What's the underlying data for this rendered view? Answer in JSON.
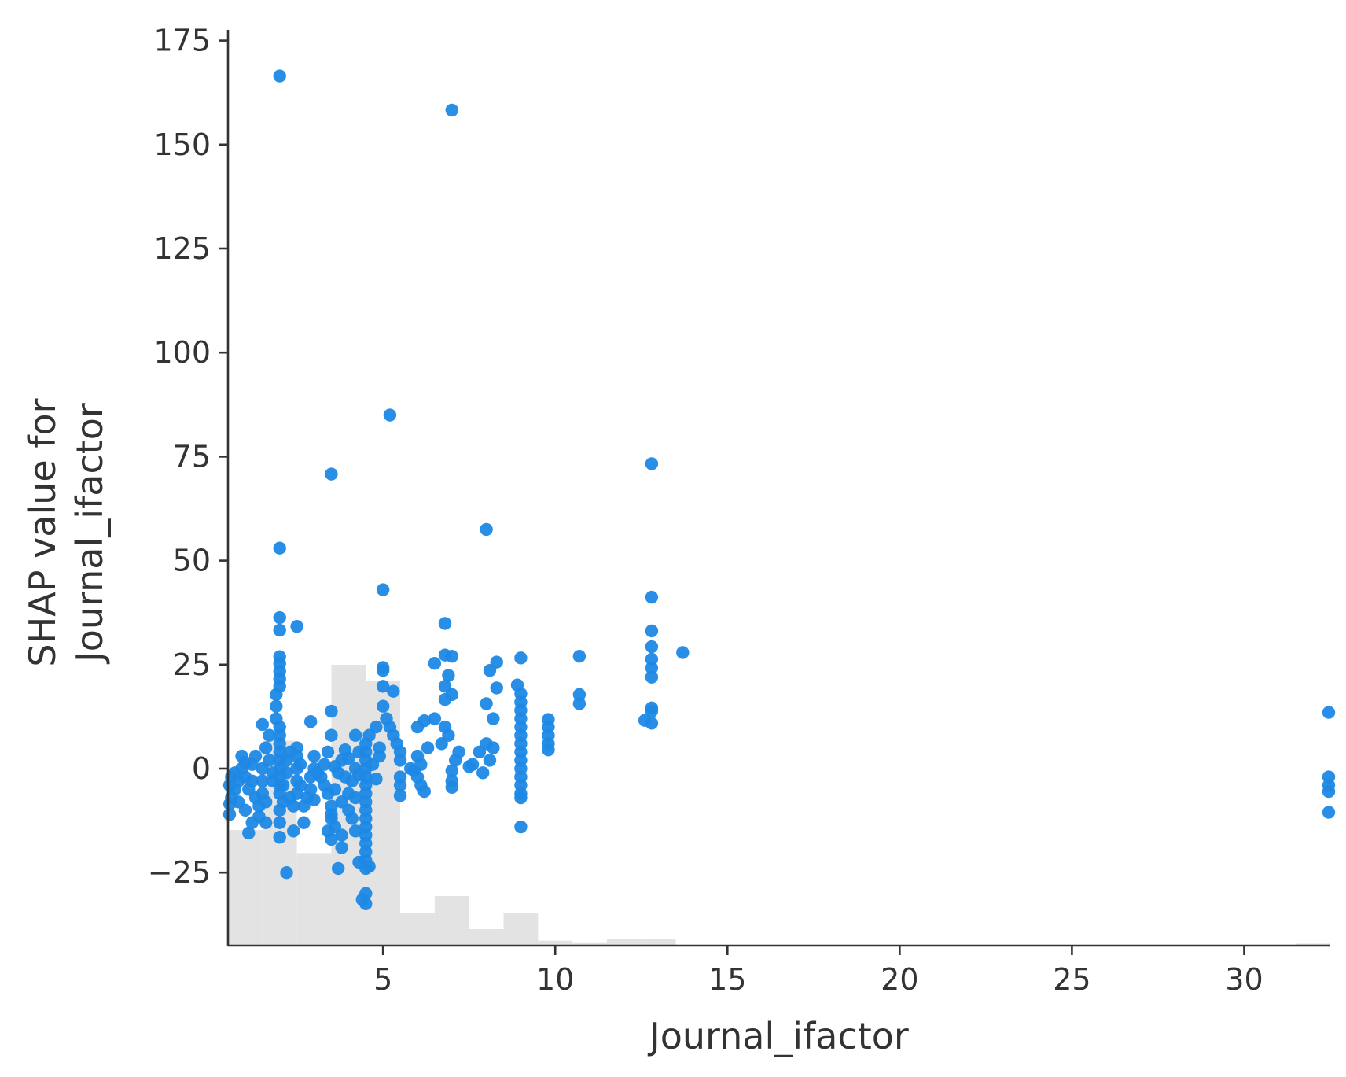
{
  "chart_data": {
    "type": "scatter",
    "title": "",
    "xlabel": "Journal_ifactor",
    "ylabel_lines": [
      "SHAP value for",
      "Journal_ifactor"
    ],
    "xlim": [
      0.5,
      32.5
    ],
    "ylim": [
      -43,
      177
    ],
    "x_ticks": [
      5,
      10,
      15,
      20,
      25,
      30
    ],
    "x_tick_labels": [
      "5",
      "10",
      "15",
      "20",
      "25",
      "30"
    ],
    "y_ticks": [
      -25,
      0,
      25,
      50,
      75,
      100,
      125,
      150,
      175
    ],
    "y_tick_labels": [
      "−25",
      "0",
      "25",
      "50",
      "75",
      "100",
      "125",
      "150",
      "175"
    ],
    "grid": false,
    "point_color": "#1E88E5",
    "histogram_color": "#e3e3e3",
    "histogram": {
      "bin_edges": [
        0.5,
        1.5,
        2.5,
        3.5,
        4.5,
        5.5,
        6.5,
        7.5,
        8.5,
        9.5,
        10.5,
        11.5,
        12.5,
        13.5,
        31.5,
        32.5
      ],
      "heights": [
        0.35,
        0.62,
        0.28,
        0.85,
        0.8,
        0.1,
        0.15,
        0.05,
        0.1,
        0.015,
        0.008,
        0.02,
        0.02,
        0.0,
        0.006
      ]
    },
    "series": [
      {
        "points": [
          [
            2.0,
            166.5
          ],
          [
            7.0,
            158.3
          ],
          [
            5.2,
            85.0
          ],
          [
            3.5,
            70.8
          ],
          [
            12.8,
            73.3
          ],
          [
            8.0,
            57.5
          ],
          [
            2.0,
            53.0
          ],
          [
            5.0,
            43.0
          ],
          [
            12.8,
            41.2
          ],
          [
            2.0,
            36.3
          ],
          [
            2.5,
            34.2
          ],
          [
            6.8,
            34.9
          ],
          [
            2.0,
            33.3
          ],
          [
            12.8,
            33.1
          ],
          [
            12.8,
            29.3
          ],
          [
            13.7,
            27.9
          ],
          [
            10.7,
            27.0
          ],
          [
            9.0,
            26.6
          ],
          [
            7.0,
            27.0
          ],
          [
            6.8,
            27.3
          ],
          [
            8.3,
            25.6
          ],
          [
            6.5,
            25.3
          ],
          [
            5.0,
            24.3
          ],
          [
            5.0,
            23.6
          ],
          [
            8.1,
            23.6
          ],
          [
            2.0,
            26.9
          ],
          [
            2.0,
            25.3
          ],
          [
            2.0,
            23.4
          ],
          [
            2.0,
            21.6
          ],
          [
            2.0,
            19.8
          ],
          [
            1.9,
            17.8
          ],
          [
            12.8,
            26.3
          ],
          [
            12.8,
            24.2
          ],
          [
            12.8,
            22.0
          ],
          [
            6.9,
            22.4
          ],
          [
            6.8,
            19.8
          ],
          [
            8.3,
            19.4
          ],
          [
            8.9,
            20.1
          ],
          [
            5.0,
            19.8
          ],
          [
            5.3,
            18.6
          ],
          [
            10.7,
            17.8
          ],
          [
            10.7,
            15.6
          ],
          [
            7.0,
            17.8
          ],
          [
            6.8,
            16.6
          ],
          [
            12.8,
            14.6
          ],
          [
            12.8,
            13.8
          ],
          [
            3.5,
            13.8
          ],
          [
            2.9,
            11.3
          ],
          [
            1.5,
            10.6
          ],
          [
            12.6,
            11.6
          ],
          [
            12.8,
            10.9
          ],
          [
            8.0,
            15.6
          ],
          [
            8.2,
            12.0
          ],
          [
            9.8,
            11.8
          ],
          [
            9.8,
            10.0
          ],
          [
            9.8,
            8.0
          ],
          [
            9.8,
            6.0
          ],
          [
            9.8,
            4.5
          ],
          [
            32.5,
            13.5
          ],
          [
            32.5,
            -2.0
          ],
          [
            32.5,
            -4.0
          ],
          [
            32.5,
            -5.5
          ],
          [
            32.5,
            -10.5
          ],
          [
            9.0,
            -14.0
          ],
          [
            9.0,
            18.0
          ],
          [
            9.0,
            16.0
          ],
          [
            9.0,
            14.0
          ],
          [
            9.0,
            12.0
          ],
          [
            9.0,
            10.0
          ],
          [
            9.0,
            8.0
          ],
          [
            9.0,
            6.0
          ],
          [
            9.0,
            4.0
          ],
          [
            9.0,
            2.0
          ],
          [
            9.0,
            0.0
          ],
          [
            9.0,
            -2.0
          ],
          [
            9.0,
            -4.0
          ],
          [
            9.0,
            -6.0
          ],
          [
            9.0,
            -7.0
          ],
          [
            8.0,
            6.0
          ],
          [
            8.2,
            5.0
          ],
          [
            7.8,
            4.0
          ],
          [
            8.1,
            2.0
          ],
          [
            7.5,
            0.5
          ],
          [
            7.9,
            -1.0
          ],
          [
            7.6,
            1.0
          ],
          [
            7.2,
            4.0
          ],
          [
            7.1,
            2.0
          ],
          [
            7.0,
            -0.5
          ],
          [
            7.0,
            -3.0
          ],
          [
            7.0,
            -4.5
          ],
          [
            6.9,
            8.0
          ],
          [
            6.8,
            10.0
          ],
          [
            6.5,
            12.0
          ],
          [
            6.2,
            11.5
          ],
          [
            6.0,
            10.0
          ],
          [
            6.7,
            6.0
          ],
          [
            6.3,
            5.0
          ],
          [
            6.0,
            3.0
          ],
          [
            6.1,
            1.0
          ],
          [
            5.9,
            -0.5
          ],
          [
            6.0,
            -2.0
          ],
          [
            6.1,
            -4.0
          ],
          [
            6.2,
            -5.5
          ],
          [
            5.8,
            0.0
          ],
          [
            5.5,
            2.0
          ],
          [
            5.5,
            4.0
          ],
          [
            5.4,
            6.0
          ],
          [
            5.5,
            -2.0
          ],
          [
            5.5,
            -4.0
          ],
          [
            5.5,
            -6.5
          ],
          [
            5.3,
            8.0
          ],
          [
            5.2,
            10.0
          ],
          [
            5.1,
            12.0
          ],
          [
            5.0,
            15.0
          ],
          [
            4.8,
            10.0
          ],
          [
            4.9,
            5.0
          ],
          [
            4.6,
            8.0
          ],
          [
            4.5,
            6.0
          ],
          [
            4.5,
            4.0
          ],
          [
            4.5,
            2.0
          ],
          [
            4.5,
            0.0
          ],
          [
            4.5,
            -2.0
          ],
          [
            4.5,
            -4.0
          ],
          [
            4.5,
            -6.0
          ],
          [
            4.5,
            -8.0
          ],
          [
            4.5,
            -10.0
          ],
          [
            4.5,
            -12.0
          ],
          [
            4.5,
            -14.0
          ],
          [
            4.5,
            -16.0
          ],
          [
            4.5,
            -18.0
          ],
          [
            4.5,
            -20.0
          ],
          [
            4.5,
            -22.0
          ],
          [
            4.5,
            -24.0
          ],
          [
            4.6,
            -23.5
          ],
          [
            4.3,
            -22.5
          ],
          [
            4.5,
            -30.0
          ],
          [
            4.4,
            -31.5
          ],
          [
            4.5,
            -32.5
          ],
          [
            4.2,
            8.0
          ],
          [
            4.3,
            4.0
          ],
          [
            4.2,
            0.0
          ],
          [
            4.1,
            -3.0
          ],
          [
            4.2,
            -7.0
          ],
          [
            4.0,
            -10.0
          ],
          [
            4.1,
            -12.0
          ],
          [
            4.2,
            -15.0
          ],
          [
            4.0,
            -6.0
          ],
          [
            3.9,
            4.5
          ],
          [
            3.8,
            2.0
          ],
          [
            3.7,
            -1.0
          ],
          [
            3.6,
            -5.0
          ],
          [
            3.8,
            -8.0
          ],
          [
            3.8,
            -16.0
          ],
          [
            3.8,
            -19.0
          ],
          [
            3.7,
            -24.0
          ],
          [
            3.6,
            -14.0
          ],
          [
            3.5,
            -12.0
          ],
          [
            3.4,
            -15.0
          ],
          [
            3.5,
            -17.0
          ],
          [
            3.5,
            8.0
          ],
          [
            3.4,
            4.0
          ],
          [
            3.3,
            1.0
          ],
          [
            3.2,
            -2.0
          ],
          [
            3.3,
            -4.0
          ],
          [
            3.4,
            -6.0
          ],
          [
            3.5,
            -9.0
          ],
          [
            3.5,
            -11.0
          ],
          [
            3.0,
            3.0
          ],
          [
            3.0,
            0.0
          ],
          [
            2.9,
            -2.0
          ],
          [
            2.9,
            -5.0
          ],
          [
            2.8,
            -7.0
          ],
          [
            2.7,
            -9.0
          ],
          [
            2.6,
            1.0
          ],
          [
            2.5,
            5.0
          ],
          [
            2.5,
            3.0
          ],
          [
            2.5,
            0.0
          ],
          [
            2.5,
            -3.0
          ],
          [
            2.5,
            -6.0
          ],
          [
            2.4,
            -9.0
          ],
          [
            2.4,
            -15.0
          ],
          [
            2.7,
            -13.0
          ],
          [
            2.2,
            -25.0
          ],
          [
            2.3,
            4.0
          ],
          [
            2.2,
            2.0
          ],
          [
            2.2,
            -1.0
          ],
          [
            2.1,
            -4.0
          ],
          [
            2.1,
            -8.0
          ],
          [
            2.0,
            -10.0
          ],
          [
            2.0,
            -13.0
          ],
          [
            2.0,
            -16.5
          ],
          [
            1.9,
            15.0
          ],
          [
            1.9,
            12.0
          ],
          [
            2.0,
            10.0
          ],
          [
            2.0,
            8.0
          ],
          [
            2.0,
            6.0
          ],
          [
            2.0,
            4.0
          ],
          [
            2.0,
            2.0
          ],
          [
            2.0,
            0.0
          ],
          [
            2.0,
            -2.0
          ],
          [
            2.0,
            -4.0
          ],
          [
            2.0,
            -6.0
          ],
          [
            1.8,
            -3.0
          ],
          [
            1.7,
            2.0
          ],
          [
            1.7,
            8.0
          ],
          [
            1.6,
            5.0
          ],
          [
            1.5,
            0.0
          ],
          [
            1.5,
            -3.0
          ],
          [
            1.5,
            -6.0
          ],
          [
            1.4,
            -9.0
          ],
          [
            1.6,
            -13.0
          ],
          [
            1.3,
            -7.0
          ],
          [
            1.2,
            -3.0
          ],
          [
            1.2,
            1.0
          ],
          [
            1.1,
            -5.0
          ],
          [
            1.0,
            -10.0
          ],
          [
            1.0,
            -2.0
          ],
          [
            0.9,
            0.0
          ],
          [
            0.9,
            3.0
          ],
          [
            0.8,
            -3.0
          ],
          [
            0.8,
            -8.0
          ],
          [
            0.7,
            -5.0
          ],
          [
            0.6,
            -2.0
          ],
          [
            0.6,
            -7.0
          ],
          [
            0.5,
            -4.0
          ],
          [
            0.5,
            -11.0
          ],
          [
            0.55,
            -8.5
          ],
          [
            1.1,
            -15.5
          ],
          [
            1.2,
            -13.0
          ],
          [
            1.4,
            -11.5
          ],
          [
            1.0,
            1.5
          ],
          [
            1.8,
            -1.0
          ],
          [
            2.6,
            -4.0
          ],
          [
            3.1,
            -1.0
          ],
          [
            3.9,
            -2.0
          ],
          [
            4.3,
            -1.5
          ],
          [
            4.7,
            1.0
          ],
          [
            4.8,
            -2.5
          ],
          [
            4.9,
            3.0
          ],
          [
            2.3,
            -7.0
          ],
          [
            1.3,
            3.0
          ],
          [
            1.6,
            -8.0
          ],
          [
            0.7,
            -1.0
          ],
          [
            3.0,
            -7.5
          ],
          [
            3.6,
            0.5
          ],
          [
            4.0,
            2.5
          ]
        ]
      }
    ]
  }
}
